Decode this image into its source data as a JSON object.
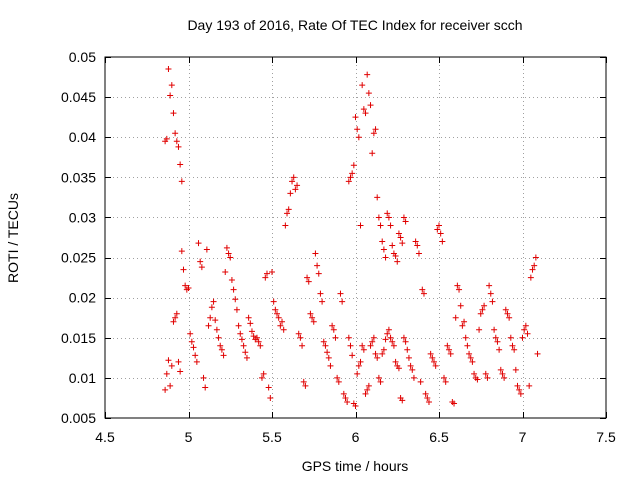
{
  "chart_data": {
    "type": "scatter",
    "title": "Day 193 of 2016, Rate Of TEC Index for receiver scch",
    "xlabel": "GPS time / hours",
    "ylabel": "ROTI / TECUs",
    "xlim": [
      4.5,
      7.5
    ],
    "ylim": [
      0.005,
      0.05
    ],
    "xticks": [
      4.5,
      5,
      5.5,
      6,
      6.5,
      7,
      7.5
    ],
    "xtick_labels": [
      "4.5",
      "5",
      "5.5",
      "6",
      "6.5",
      "7",
      "7.5"
    ],
    "yticks": [
      0.005,
      0.01,
      0.015,
      0.02,
      0.025,
      0.03,
      0.035,
      0.04,
      0.045,
      0.05
    ],
    "ytick_labels": [
      "0.005",
      "0.01",
      "0.015",
      "0.02",
      "0.025",
      "0.03",
      "0.035",
      "0.04",
      "0.045",
      "0.05"
    ],
    "grid": true,
    "marker": "+",
    "color": "#e00000",
    "series": [
      {
        "name": "ROTI",
        "points": [
          [
            4.86,
            0.0395
          ],
          [
            4.87,
            0.0398
          ],
          [
            4.88,
            0.0485
          ],
          [
            4.89,
            0.0452
          ],
          [
            4.9,
            0.0465
          ],
          [
            4.91,
            0.043
          ],
          [
            4.92,
            0.0405
          ],
          [
            4.93,
            0.0395
          ],
          [
            4.94,
            0.0388
          ],
          [
            4.95,
            0.0366
          ],
          [
            4.96,
            0.0345
          ],
          [
            4.86,
            0.0085
          ],
          [
            4.87,
            0.0105
          ],
          [
            4.88,
            0.0122
          ],
          [
            4.89,
            0.009
          ],
          [
            4.9,
            0.0115
          ],
          [
            4.91,
            0.017
          ],
          [
            4.92,
            0.0175
          ],
          [
            4.93,
            0.018
          ],
          [
            4.94,
            0.012
          ],
          [
            4.95,
            0.0108
          ],
          [
            4.96,
            0.0258
          ],
          [
            4.97,
            0.0235
          ],
          [
            4.98,
            0.0215
          ],
          [
            4.99,
            0.021
          ],
          [
            5.0,
            0.0212
          ],
          [
            5.01,
            0.0155
          ],
          [
            5.02,
            0.0145
          ],
          [
            5.03,
            0.0138
          ],
          [
            5.04,
            0.0128
          ],
          [
            5.05,
            0.012
          ],
          [
            5.06,
            0.0268
          ],
          [
            5.07,
            0.0245
          ],
          [
            5.08,
            0.0238
          ],
          [
            5.09,
            0.01
          ],
          [
            5.1,
            0.0088
          ],
          [
            5.11,
            0.026
          ],
          [
            5.12,
            0.0165
          ],
          [
            5.13,
            0.0175
          ],
          [
            5.14,
            0.0188
          ],
          [
            5.15,
            0.0195
          ],
          [
            5.16,
            0.0172
          ],
          [
            5.17,
            0.016
          ],
          [
            5.18,
            0.015
          ],
          [
            5.19,
            0.014
          ],
          [
            5.2,
            0.0135
          ],
          [
            5.21,
            0.0128
          ],
          [
            5.22,
            0.0232
          ],
          [
            5.23,
            0.0262
          ],
          [
            5.24,
            0.0255
          ],
          [
            5.25,
            0.025
          ],
          [
            5.26,
            0.0222
          ],
          [
            5.27,
            0.021
          ],
          [
            5.28,
            0.0198
          ],
          [
            5.29,
            0.0185
          ],
          [
            5.3,
            0.0165
          ],
          [
            5.31,
            0.0155
          ],
          [
            5.32,
            0.0148
          ],
          [
            5.33,
            0.014
          ],
          [
            5.34,
            0.0132
          ],
          [
            5.35,
            0.0125
          ],
          [
            5.36,
            0.0175
          ],
          [
            5.37,
            0.0168
          ],
          [
            5.38,
            0.0158
          ],
          [
            5.39,
            0.0152
          ],
          [
            5.4,
            0.0148
          ],
          [
            5.41,
            0.015
          ],
          [
            5.42,
            0.0145
          ],
          [
            5.43,
            0.014
          ],
          [
            5.44,
            0.01
          ],
          [
            5.45,
            0.0105
          ],
          [
            5.46,
            0.0225
          ],
          [
            5.47,
            0.023
          ],
          [
            5.48,
            0.0088
          ],
          [
            5.49,
            0.0075
          ],
          [
            5.5,
            0.0232
          ],
          [
            5.51,
            0.0195
          ],
          [
            5.52,
            0.0185
          ],
          [
            5.53,
            0.018
          ],
          [
            5.54,
            0.0175
          ],
          [
            5.55,
            0.0165
          ],
          [
            5.56,
            0.017
          ],
          [
            5.57,
            0.016
          ],
          [
            5.58,
            0.029
          ],
          [
            5.59,
            0.0305
          ],
          [
            5.6,
            0.031
          ],
          [
            5.61,
            0.033
          ],
          [
            5.62,
            0.0345
          ],
          [
            5.63,
            0.035
          ],
          [
            5.64,
            0.0335
          ],
          [
            5.65,
            0.034
          ],
          [
            5.66,
            0.0155
          ],
          [
            5.67,
            0.015
          ],
          [
            5.68,
            0.014
          ],
          [
            5.69,
            0.0095
          ],
          [
            5.7,
            0.009
          ],
          [
            5.71,
            0.0225
          ],
          [
            5.72,
            0.022
          ],
          [
            5.73,
            0.018
          ],
          [
            5.74,
            0.0175
          ],
          [
            5.75,
            0.017
          ],
          [
            5.76,
            0.0255
          ],
          [
            5.77,
            0.024
          ],
          [
            5.78,
            0.023
          ],
          [
            5.79,
            0.0205
          ],
          [
            5.8,
            0.0195
          ],
          [
            5.81,
            0.0145
          ],
          [
            5.82,
            0.014
          ],
          [
            5.83,
            0.0132
          ],
          [
            5.84,
            0.0125
          ],
          [
            5.85,
            0.0115
          ],
          [
            5.86,
            0.0165
          ],
          [
            5.87,
            0.016
          ],
          [
            5.88,
            0.015
          ],
          [
            5.89,
            0.01
          ],
          [
            5.9,
            0.0095
          ],
          [
            5.91,
            0.0205
          ],
          [
            5.92,
            0.0195
          ],
          [
            5.93,
            0.008
          ],
          [
            5.94,
            0.0075
          ],
          [
            5.95,
            0.007
          ],
          [
            5.96,
            0.0345
          ],
          [
            5.97,
            0.035
          ],
          [
            5.98,
            0.0355
          ],
          [
            5.99,
            0.0365
          ],
          [
            6.0,
            0.0425
          ],
          [
            6.01,
            0.041
          ],
          [
            6.02,
            0.04
          ],
          [
            6.03,
            0.029
          ],
          [
            6.04,
            0.0465
          ],
          [
            6.05,
            0.0435
          ],
          [
            6.06,
            0.043
          ],
          [
            6.07,
            0.0478
          ],
          [
            6.08,
            0.0455
          ],
          [
            6.09,
            0.044
          ],
          [
            6.1,
            0.038
          ],
          [
            6.11,
            0.0405
          ],
          [
            6.12,
            0.041
          ],
          [
            6.13,
            0.0325
          ],
          [
            6.14,
            0.03
          ],
          [
            6.15,
            0.029
          ],
          [
            6.16,
            0.027
          ],
          [
            6.17,
            0.026
          ],
          [
            6.18,
            0.025
          ],
          [
            6.19,
            0.0305
          ],
          [
            6.2,
            0.03
          ],
          [
            6.21,
            0.029
          ],
          [
            6.22,
            0.0265
          ],
          [
            6.23,
            0.0255
          ],
          [
            6.24,
            0.0252
          ],
          [
            6.25,
            0.0245
          ],
          [
            6.26,
            0.028
          ],
          [
            6.27,
            0.0275
          ],
          [
            6.28,
            0.0268
          ],
          [
            6.29,
            0.03
          ],
          [
            6.3,
            0.0295
          ],
          [
            5.96,
            0.015
          ],
          [
            5.97,
            0.014
          ],
          [
            5.98,
            0.0128
          ],
          [
            5.99,
            0.0068
          ],
          [
            6.0,
            0.0065
          ],
          [
            6.01,
            0.0105
          ],
          [
            6.02,
            0.0115
          ],
          [
            6.03,
            0.012
          ],
          [
            6.04,
            0.014
          ],
          [
            6.05,
            0.0135
          ],
          [
            6.06,
            0.008
          ],
          [
            6.07,
            0.0085
          ],
          [
            6.08,
            0.009
          ],
          [
            6.09,
            0.014
          ],
          [
            6.1,
            0.0145
          ],
          [
            6.11,
            0.015
          ],
          [
            6.12,
            0.013
          ],
          [
            6.13,
            0.0125
          ],
          [
            6.14,
            0.01
          ],
          [
            6.15,
            0.0095
          ],
          [
            6.16,
            0.013
          ],
          [
            6.17,
            0.0135
          ],
          [
            6.18,
            0.0148
          ],
          [
            6.19,
            0.0155
          ],
          [
            6.2,
            0.016
          ],
          [
            6.21,
            0.015
          ],
          [
            6.22,
            0.0145
          ],
          [
            6.23,
            0.014
          ],
          [
            6.24,
            0.012
          ],
          [
            6.25,
            0.0115
          ],
          [
            6.26,
            0.0112
          ],
          [
            6.27,
            0.0075
          ],
          [
            6.28,
            0.0072
          ],
          [
            6.29,
            0.015
          ],
          [
            6.3,
            0.0145
          ],
          [
            6.31,
            0.0135
          ],
          [
            6.32,
            0.0125
          ],
          [
            6.33,
            0.0115
          ],
          [
            6.34,
            0.011
          ],
          [
            6.35,
            0.01
          ],
          [
            6.36,
            0.027
          ],
          [
            6.37,
            0.0265
          ],
          [
            6.38,
            0.0255
          ],
          [
            6.39,
            0.0095
          ],
          [
            6.4,
            0.021
          ],
          [
            6.41,
            0.0205
          ],
          [
            6.42,
            0.008
          ],
          [
            6.43,
            0.0075
          ],
          [
            6.44,
            0.007
          ],
          [
            6.45,
            0.013
          ],
          [
            6.46,
            0.0125
          ],
          [
            6.47,
            0.012
          ],
          [
            6.48,
            0.0115
          ],
          [
            6.49,
            0.0285
          ],
          [
            6.5,
            0.029
          ],
          [
            6.51,
            0.028
          ],
          [
            6.52,
            0.027
          ],
          [
            6.53,
            0.01
          ],
          [
            6.54,
            0.0095
          ],
          [
            6.55,
            0.014
          ],
          [
            6.56,
            0.0135
          ],
          [
            6.57,
            0.013
          ],
          [
            6.58,
            0.007
          ],
          [
            6.59,
            0.0068
          ],
          [
            6.6,
            0.0175
          ],
          [
            6.61,
            0.0215
          ],
          [
            6.62,
            0.021
          ],
          [
            6.63,
            0.019
          ],
          [
            6.64,
            0.0165
          ],
          [
            6.65,
            0.017
          ],
          [
            6.66,
            0.015
          ],
          [
            6.67,
            0.014
          ],
          [
            6.68,
            0.013
          ],
          [
            6.69,
            0.0125
          ],
          [
            6.7,
            0.012
          ],
          [
            6.71,
            0.0105
          ],
          [
            6.72,
            0.01
          ],
          [
            6.73,
            0.0098
          ],
          [
            6.74,
            0.016
          ],
          [
            6.75,
            0.018
          ],
          [
            6.76,
            0.0185
          ],
          [
            6.77,
            0.019
          ],
          [
            6.78,
            0.0105
          ],
          [
            6.79,
            0.01
          ],
          [
            6.8,
            0.0215
          ],
          [
            6.81,
            0.0205
          ],
          [
            6.82,
            0.0195
          ],
          [
            6.83,
            0.016
          ],
          [
            6.84,
            0.015
          ],
          [
            6.85,
            0.0145
          ],
          [
            6.86,
            0.0135
          ],
          [
            6.87,
            0.011
          ],
          [
            6.88,
            0.0105
          ],
          [
            6.89,
            0.01
          ],
          [
            6.9,
            0.0185
          ],
          [
            6.91,
            0.018
          ],
          [
            6.92,
            0.0175
          ],
          [
            6.93,
            0.015
          ],
          [
            6.94,
            0.014
          ],
          [
            6.95,
            0.0135
          ],
          [
            6.96,
            0.011
          ],
          [
            6.97,
            0.009
          ],
          [
            6.98,
            0.0085
          ],
          [
            6.99,
            0.008
          ],
          [
            7.0,
            0.015
          ],
          [
            7.01,
            0.016
          ],
          [
            7.02,
            0.0165
          ],
          [
            7.03,
            0.0155
          ],
          [
            7.04,
            0.009
          ],
          [
            7.05,
            0.0225
          ],
          [
            7.06,
            0.0235
          ],
          [
            7.07,
            0.024
          ],
          [
            7.08,
            0.025
          ],
          [
            7.09,
            0.013
          ]
        ]
      }
    ]
  }
}
